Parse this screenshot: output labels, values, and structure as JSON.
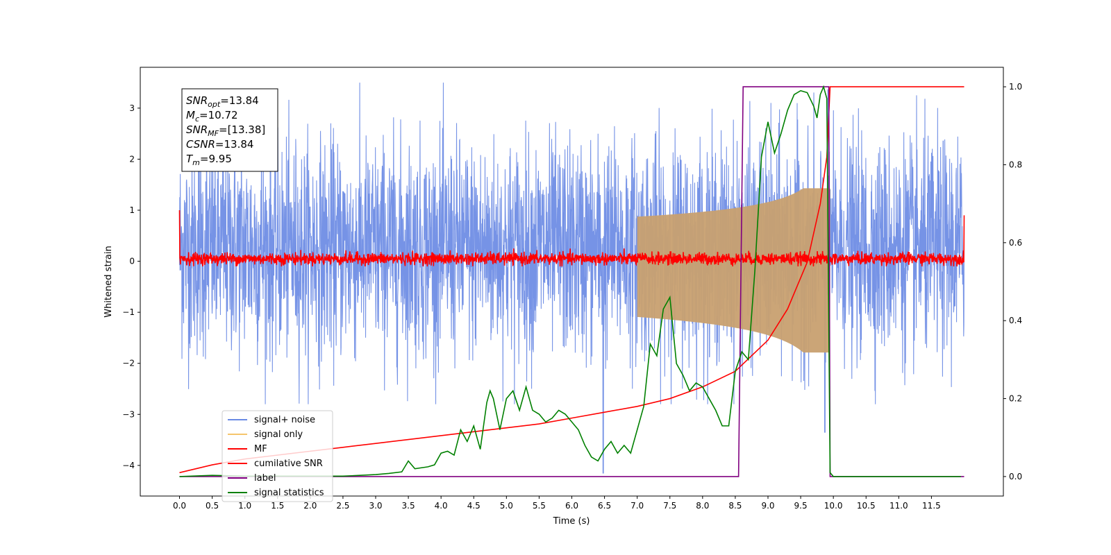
{
  "chart_data": {
    "type": "line",
    "xlabel": "Time (s)",
    "ylabel": "Whitened strain",
    "xlim": [
      -0.6,
      12.6
    ],
    "ylim": [
      -4.6,
      3.8
    ],
    "ylim_right": [
      -0.05,
      1.05
    ],
    "xticks": [
      "0.0",
      "0.5",
      "1.0",
      "1.5",
      "2.0",
      "2.5",
      "3.0",
      "3.5",
      "4.0",
      "4.5",
      "5.0",
      "5.5",
      "6.0",
      "6.5",
      "7.0",
      "7.5",
      "8.0",
      "8.5",
      "9.0",
      "9.5",
      "10.0",
      "10.5",
      "11.0",
      "11.5"
    ],
    "yticks": [
      "3",
      "2",
      "1",
      "0",
      "−1",
      "−2",
      "−3",
      "−4"
    ],
    "yticks_right": [
      "1.0",
      "0.8",
      "0.6",
      "0.4",
      "0.2",
      "0.0"
    ],
    "annotation": {
      "lines": [
        {
          "base": "SNR",
          "sub": "opt",
          "value": "=13.84"
        },
        {
          "base": "M",
          "sub": "c",
          "value": "=10.72"
        },
        {
          "base": "SNR",
          "sub": "MF",
          "value": "=[13.38]"
        },
        {
          "base": "CSNR",
          "sub": "",
          "value": "=13.84"
        },
        {
          "base": "T",
          "sub": "m",
          "value": "=9.95"
        }
      ]
    },
    "legend": {
      "placement": "lower-left",
      "entries": [
        {
          "label": "signal+ noise",
          "color": "#6a8ae4"
        },
        {
          "label": "signal only",
          "color": "#f5c56b"
        },
        {
          "label": "MF",
          "color": "#ff0000"
        },
        {
          "label": "cumilative SNR",
          "color": "#ff0000"
        },
        {
          "label": "label",
          "color": "#800080"
        },
        {
          "label": "signal statistics",
          "color": "#008000"
        }
      ]
    },
    "series": [
      {
        "key": "signal_noise",
        "axis": "left",
        "color": "#6a8ae4",
        "style": "noise",
        "x_range": [
          0.0,
          12.0
        ],
        "band": [
          -2.8,
          3.5
        ]
      },
      {
        "key": "signal_only",
        "axis": "left",
        "color": "#c8a070",
        "style": "chirp",
        "x_range": [
          7.0,
          9.95
        ],
        "peak_amplitude": 1.1,
        "merger_time": 9.95
      },
      {
        "key": "mf",
        "axis": "left",
        "color": "#ff0000",
        "style": "noise",
        "x_range": [
          0.0,
          12.0
        ],
        "band": [
          -0.1,
          0.25
        ]
      },
      {
        "key": "cumulative_snr",
        "axis": "right",
        "color": "#ff0000",
        "x": [
          0.0,
          0.5,
          1.0,
          1.5,
          2.0,
          2.5,
          3.0,
          3.5,
          4.0,
          4.5,
          5.0,
          5.5,
          6.0,
          6.5,
          7.0,
          7.5,
          8.0,
          8.5,
          9.0,
          9.3,
          9.6,
          9.8,
          9.9,
          9.95
        ],
        "y": [
          0.01,
          0.03,
          0.045,
          0.055,
          0.065,
          0.075,
          0.085,
          0.095,
          0.105,
          0.115,
          0.125,
          0.135,
          0.15,
          0.165,
          0.18,
          0.2,
          0.23,
          0.27,
          0.35,
          0.43,
          0.55,
          0.7,
          0.82,
          1.0
        ]
      },
      {
        "key": "label",
        "axis": "right",
        "color": "#800080",
        "x": [
          0.0,
          8.55,
          8.62,
          9.93,
          9.95,
          12.0
        ],
        "y": [
          0.0,
          0.0,
          1.0,
          1.0,
          0.0,
          0.0
        ]
      },
      {
        "key": "signal_statistics",
        "axis": "right",
        "color": "#008000",
        "x": [
          0.0,
          0.5,
          1.0,
          1.5,
          2.0,
          2.5,
          3.0,
          3.2,
          3.4,
          3.5,
          3.6,
          3.8,
          3.9,
          4.0,
          4.1,
          4.2,
          4.3,
          4.4,
          4.5,
          4.6,
          4.7,
          4.75,
          4.8,
          4.9,
          5.0,
          5.1,
          5.2,
          5.3,
          5.35,
          5.4,
          5.5,
          5.6,
          5.7,
          5.8,
          5.9,
          6.0,
          6.1,
          6.2,
          6.3,
          6.4,
          6.5,
          6.6,
          6.7,
          6.8,
          6.9,
          7.0,
          7.1,
          7.2,
          7.3,
          7.4,
          7.5,
          7.6,
          7.7,
          7.8,
          7.9,
          8.0,
          8.1,
          8.2,
          8.3,
          8.4,
          8.5,
          8.6,
          8.7,
          8.8,
          8.9,
          9.0,
          9.1,
          9.2,
          9.3,
          9.4,
          9.5,
          9.6,
          9.7,
          9.75,
          9.8,
          9.85,
          9.9,
          9.95,
          10.0,
          10.5,
          11.0,
          11.5,
          11.95
        ],
        "y": [
          0.0,
          0.003,
          0.001,
          0.001,
          0.001,
          0.001,
          0.005,
          0.008,
          0.012,
          0.04,
          0.02,
          0.025,
          0.03,
          0.06,
          0.065,
          0.055,
          0.12,
          0.09,
          0.13,
          0.07,
          0.19,
          0.22,
          0.2,
          0.12,
          0.2,
          0.22,
          0.17,
          0.23,
          0.2,
          0.17,
          0.16,
          0.14,
          0.15,
          0.17,
          0.16,
          0.14,
          0.12,
          0.08,
          0.05,
          0.04,
          0.07,
          0.09,
          0.06,
          0.08,
          0.06,
          0.12,
          0.18,
          0.34,
          0.31,
          0.43,
          0.46,
          0.29,
          0.26,
          0.22,
          0.24,
          0.23,
          0.2,
          0.17,
          0.13,
          0.13,
          0.27,
          0.32,
          0.3,
          0.53,
          0.82,
          0.91,
          0.83,
          0.88,
          0.94,
          0.98,
          0.99,
          0.985,
          0.95,
          0.92,
          0.98,
          1.0,
          0.97,
          0.01,
          0.0,
          0.0,
          0.0,
          0.0,
          0.0
        ]
      }
    ]
  }
}
